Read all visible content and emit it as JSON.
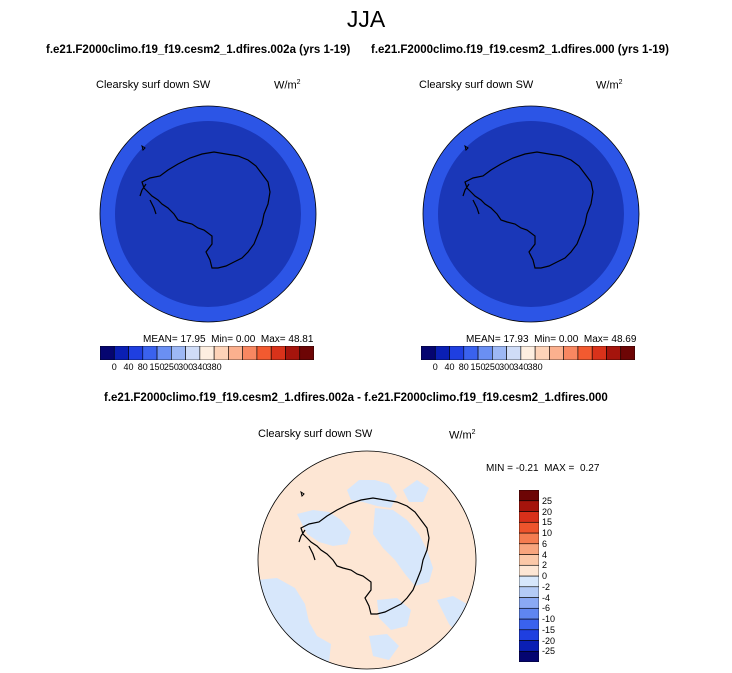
{
  "figure": {
    "title": "JJA",
    "diff_title": "f.e21.F2000climo.f19_f19.cesm2_1.dfires.002a - f.e21.F2000climo.f19_f19.cesm2_1.dfires.000"
  },
  "panels": [
    {
      "case": "f.e21.F2000climo.f19_f19.cesm2_1.dfires.002a (yrs 1-19)",
      "field": "Clearsky surf down SW",
      "units_base": "W/m",
      "units_exp": "2",
      "mean_label": "MEAN=",
      "mean": "17.95",
      "min_label": "Min=",
      "min": "0.00",
      "max_label": "Max=",
      "max": "48.81"
    },
    {
      "case": "f.e21.F2000climo.f19_f19.cesm2_1.dfires.000 (yrs 1-19)",
      "field": "Clearsky surf down SW",
      "units_base": "W/m",
      "units_exp": "2",
      "mean_label": "MEAN=",
      "mean": "17.93",
      "min_label": "Min=",
      "min": "0.00",
      "max_label": "Max=",
      "max": "48.69"
    }
  ],
  "diff_panel": {
    "field": "Clearsky surf down SW",
    "units_base": "W/m",
    "units_exp": "2",
    "min_label": "MIN =",
    "min": "-0.21",
    "max_label": "MAX =",
    "max": "0.27"
  },
  "colorbars": {
    "abs_colors": [
      "#050570",
      "#0a1fb4",
      "#1f3fe0",
      "#3a62ee",
      "#6a8ff3",
      "#9db8f5",
      "#cfdcf7",
      "#fdeee0",
      "#fdd3b8",
      "#fbb08e",
      "#f88761",
      "#f25a30",
      "#d9321a",
      "#a5140c",
      "#6d0505"
    ],
    "abs_tick_labels": [
      "0",
      "40",
      "80",
      "150",
      "250",
      "300",
      "340",
      "380"
    ],
    "diff_colors": [
      "#050570",
      "#0a1fb4",
      "#1f3fe0",
      "#3a62ee",
      "#5f86f1",
      "#8aa9f4",
      "#b4cbf6",
      "#d7e7fb",
      "#fde6d4",
      "#fbc8a8",
      "#f8a57e",
      "#f47c50",
      "#ee542c",
      "#d8301a",
      "#a5140c",
      "#6d0505"
    ],
    "diff_tick_labels": [
      "-25",
      "-20",
      "-15",
      "-10",
      "-6",
      "-4",
      "-2",
      "0",
      "2",
      "4",
      "6",
      "10",
      "15",
      "20",
      "25"
    ]
  },
  "map_colors": {
    "outer_ring": "#2c55e6",
    "inner_disc": "#1a37b8",
    "diff_background": "#fde6d4",
    "diff_negative": "#d7e7fb",
    "coast": "#000000"
  }
}
